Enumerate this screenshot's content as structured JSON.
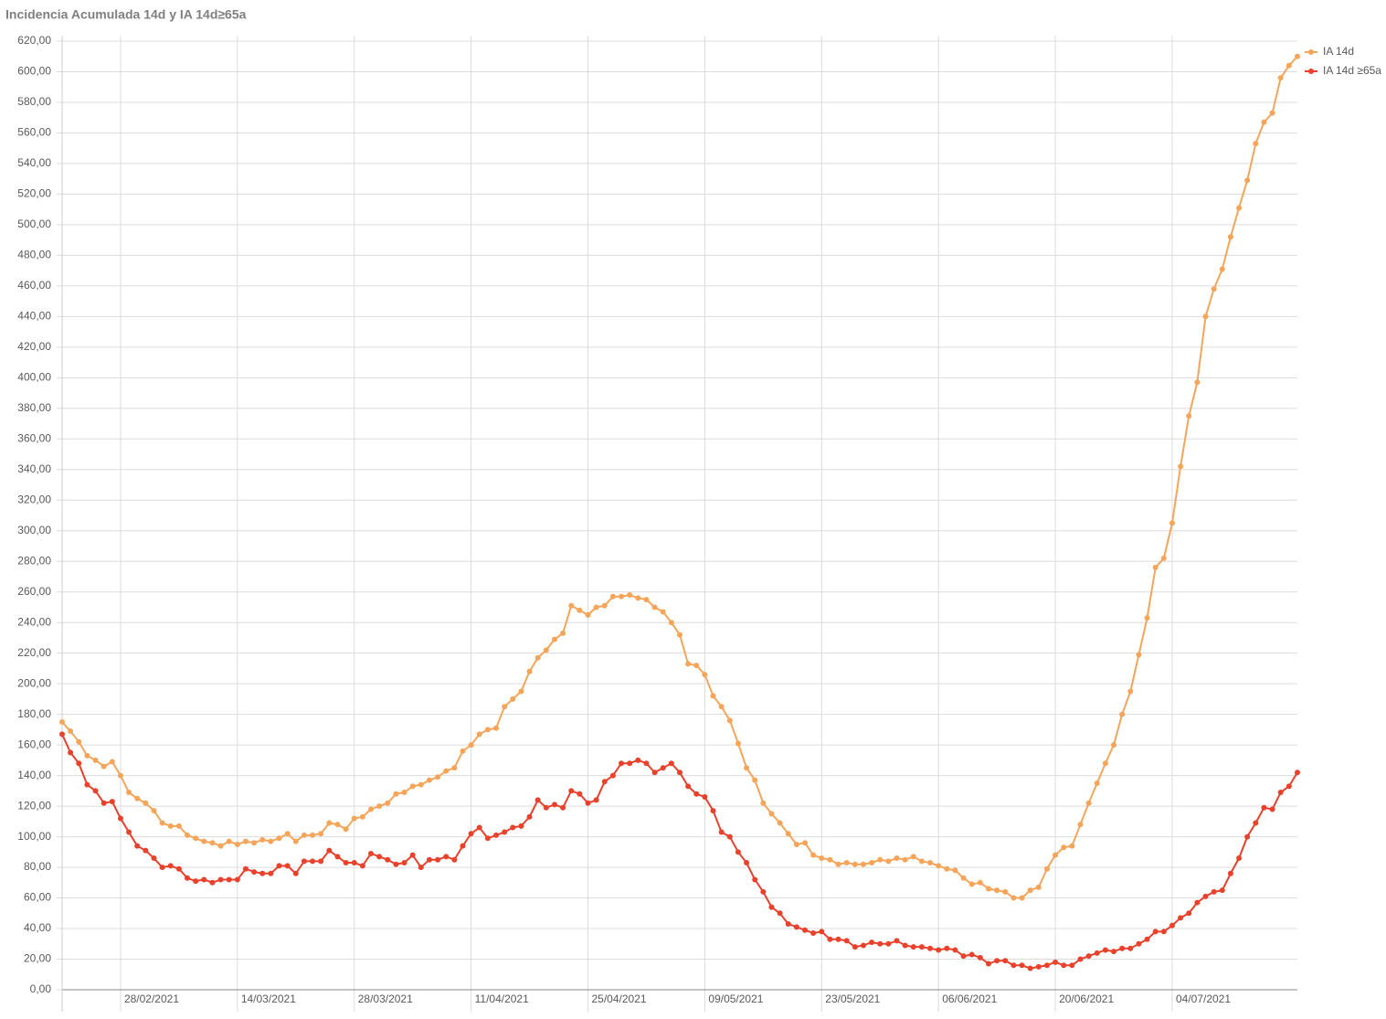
{
  "chart_data": {
    "type": "line",
    "title": "Incidencia Acumulada 14d y IA 14d≥65a",
    "categories": [
      null,
      null,
      null,
      null,
      null,
      null,
      null,
      "28/02/2021",
      null,
      null,
      null,
      null,
      null,
      null,
      null,
      null,
      null,
      null,
      null,
      null,
      null,
      "14/03/2021",
      null,
      null,
      null,
      null,
      null,
      null,
      null,
      null,
      null,
      null,
      null,
      null,
      null,
      "28/03/2021",
      null,
      null,
      null,
      null,
      null,
      null,
      null,
      null,
      null,
      null,
      null,
      null,
      null,
      "11/04/2021",
      null,
      null,
      null,
      null,
      null,
      null,
      null,
      null,
      null,
      null,
      null,
      null,
      null,
      "25/04/2021",
      null,
      null,
      null,
      null,
      null,
      null,
      null,
      null,
      null,
      null,
      null,
      null,
      null,
      "09/05/2021",
      null,
      null,
      null,
      null,
      null,
      null,
      null,
      null,
      null,
      null,
      null,
      null,
      null,
      "23/05/2021",
      null,
      null,
      null,
      null,
      null,
      null,
      null,
      null,
      null,
      null,
      null,
      null,
      null,
      "06/06/2021",
      null,
      null,
      null,
      null,
      null,
      null,
      null,
      null,
      null,
      null,
      null,
      null,
      null,
      "20/06/2021",
      null,
      null,
      null,
      null,
      null,
      null,
      null,
      null,
      null,
      null,
      null,
      null,
      null,
      "04/07/2021",
      null,
      null,
      null,
      null,
      null,
      null,
      null,
      null,
      null,
      null,
      null,
      null,
      null,
      null,
      null
    ],
    "series": [
      {
        "name": "IA 14d",
        "color": "#f5a55a",
        "values": [
          175,
          169,
          162,
          153,
          150,
          146,
          149,
          140,
          129,
          125,
          122,
          117,
          109,
          107,
          107,
          101,
          99,
          97,
          96,
          94,
          97,
          95,
          97,
          96,
          98,
          97,
          99,
          102,
          97,
          101,
          101,
          102,
          109,
          108,
          105,
          112,
          113,
          118,
          120,
          122,
          128,
          129,
          133,
          134,
          137,
          139,
          143,
          145,
          156,
          160,
          167,
          170,
          171,
          185,
          190,
          195,
          208,
          217,
          222,
          229,
          233,
          251,
          248,
          245,
          250,
          251,
          257,
          257,
          258,
          256,
          255,
          250,
          247,
          240,
          232,
          213,
          212,
          206,
          192,
          185,
          176,
          161,
          145,
          137,
          122,
          115,
          109,
          102,
          95,
          96,
          88,
          86,
          85,
          82,
          83,
          82,
          82,
          83,
          85,
          84,
          86,
          85,
          87,
          84,
          83,
          81,
          79,
          78,
          73,
          69,
          70,
          66,
          65,
          64,
          60,
          60,
          65,
          67,
          79,
          88,
          93,
          94,
          108,
          122,
          135,
          148,
          160,
          180,
          195,
          219,
          243,
          276,
          282,
          305,
          342,
          375,
          397,
          440,
          458,
          471,
          492,
          511,
          529,
          553,
          567,
          573,
          596,
          604,
          610
        ]
      },
      {
        "name": "IA 14d ≥65a",
        "color": "#e8412c",
        "values": [
          167,
          155,
          148,
          134,
          130,
          122,
          123,
          112,
          103,
          94,
          91,
          86,
          80,
          81,
          79,
          73,
          71,
          72,
          70,
          72,
          72,
          72,
          79,
          77,
          76,
          76,
          81,
          81,
          76,
          84,
          84,
          84,
          91,
          87,
          83,
          83,
          81,
          89,
          87,
          85,
          82,
          83,
          88,
          80,
          85,
          85,
          87,
          85,
          94,
          102,
          106,
          99,
          101,
          103,
          106,
          107,
          113,
          124,
          119,
          121,
          119,
          130,
          128,
          122,
          124,
          136,
          140,
          148,
          148,
          150,
          148,
          142,
          145,
          148,
          142,
          133,
          128,
          126,
          117,
          103,
          100,
          90,
          83,
          72,
          64,
          54,
          50,
          43,
          41,
          39,
          37,
          38,
          33,
          33,
          32,
          28,
          29,
          31,
          30,
          30,
          32,
          29,
          28,
          28,
          27,
          26,
          27,
          26,
          22,
          23,
          21,
          17,
          19,
          19,
          16,
          16,
          14,
          15,
          16,
          18,
          16,
          16,
          20,
          22,
          24,
          26,
          25,
          27,
          27,
          30,
          33,
          38,
          38,
          42,
          47,
          50,
          57,
          61,
          64,
          65,
          76,
          86,
          100,
          109,
          119,
          118,
          129,
          133,
          142
        ]
      }
    ],
    "ylim": [
      0,
      620
    ],
    "yticks": [
      {
        "value": 0,
        "label": "0,00"
      },
      {
        "value": 20,
        "label": "20,00"
      },
      {
        "value": 40,
        "label": "40,00"
      },
      {
        "value": 60,
        "label": "60,00"
      },
      {
        "value": 80,
        "label": "80,00"
      },
      {
        "value": 100,
        "label": "100,00"
      },
      {
        "value": 120,
        "label": "120,00"
      },
      {
        "value": 140,
        "label": "140,00"
      },
      {
        "value": 160,
        "label": "160,00"
      },
      {
        "value": 180,
        "label": "180,00"
      },
      {
        "value": 200,
        "label": "200,00"
      },
      {
        "value": 220,
        "label": "220,00"
      },
      {
        "value": 240,
        "label": "240,00"
      },
      {
        "value": 260,
        "label": "260,00"
      },
      {
        "value": 280,
        "label": "280,00"
      },
      {
        "value": 300,
        "label": "300,00"
      },
      {
        "value": 320,
        "label": "320,00"
      },
      {
        "value": 340,
        "label": "340,00"
      },
      {
        "value": 360,
        "label": "360,00"
      },
      {
        "value": 380,
        "label": "380,00"
      },
      {
        "value": 400,
        "label": "400,00"
      },
      {
        "value": 420,
        "label": "420,00"
      },
      {
        "value": 440,
        "label": "440,00"
      },
      {
        "value": 460,
        "label": "460,00"
      },
      {
        "value": 480,
        "label": "480,00"
      },
      {
        "value": 500,
        "label": "500,00"
      },
      {
        "value": 520,
        "label": "520,00"
      },
      {
        "value": 540,
        "label": "540,00"
      },
      {
        "value": 560,
        "label": "560,00"
      },
      {
        "value": 580,
        "label": "580,00"
      },
      {
        "value": 600,
        "label": "600,00"
      },
      {
        "value": 620,
        "label": "620,00"
      }
    ],
    "grid": true
  }
}
